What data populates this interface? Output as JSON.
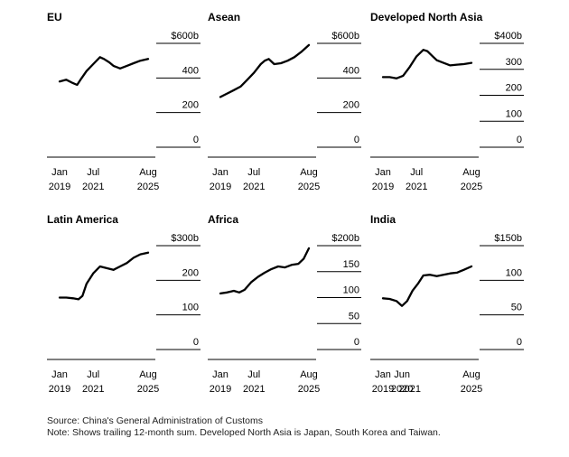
{
  "notes": {
    "source": "Source: China's General Administration of Customs",
    "note": "Note: Shows trailing 12-month sum. Developed North Asia is Japan, South Korea and Taiwan."
  },
  "chart_data": [
    {
      "type": "line",
      "title": "EU",
      "unit": "b",
      "ylim": [
        0,
        600
      ],
      "yticks": [
        "0",
        "200",
        "400",
        "$600b"
      ],
      "ytick_values": [
        0,
        200,
        400,
        600
      ],
      "xlim": [
        2019.0,
        2025.58
      ],
      "xticks": [
        {
          "value": 2019.0,
          "line1": "Jan",
          "line2": "2019"
        },
        {
          "value": 2021.5,
          "line1": "Jul",
          "line2": "2021"
        },
        {
          "value": 2025.58,
          "line1": "Aug",
          "line2": "2025"
        }
      ],
      "series": [
        {
          "points": [
            [
              2019.0,
              380
            ],
            [
              2019.5,
              390
            ],
            [
              2020.0,
              370
            ],
            [
              2020.3,
              360
            ],
            [
              2020.6,
              395
            ],
            [
              2021.0,
              440
            ],
            [
              2021.5,
              480
            ],
            [
              2022.0,
              520
            ],
            [
              2022.3,
              510
            ],
            [
              2022.7,
              490
            ],
            [
              2023.0,
              470
            ],
            [
              2023.5,
              455
            ],
            [
              2024.0,
              470
            ],
            [
              2024.5,
              485
            ],
            [
              2025.0,
              500
            ],
            [
              2025.58,
              510
            ]
          ]
        }
      ]
    },
    {
      "type": "line",
      "title": "Asean",
      "unit": "b",
      "ylim": [
        0,
        600
      ],
      "yticks": [
        "0",
        "200",
        "400",
        "$600b"
      ],
      "ytick_values": [
        0,
        200,
        400,
        600
      ],
      "xlim": [
        2019.0,
        2025.58
      ],
      "xticks": [
        {
          "value": 2019.0,
          "line1": "Jan",
          "line2": "2019"
        },
        {
          "value": 2021.5,
          "line1": "Jul",
          "line2": "2021"
        },
        {
          "value": 2025.58,
          "line1": "Aug",
          "line2": "2025"
        }
      ],
      "series": [
        {
          "points": [
            [
              2019.0,
              290
            ],
            [
              2019.5,
              310
            ],
            [
              2020.0,
              330
            ],
            [
              2020.5,
              350
            ],
            [
              2021.0,
              390
            ],
            [
              2021.5,
              430
            ],
            [
              2022.0,
              480
            ],
            [
              2022.3,
              500
            ],
            [
              2022.6,
              510
            ],
            [
              2023.0,
              480
            ],
            [
              2023.5,
              485
            ],
            [
              2024.0,
              500
            ],
            [
              2024.5,
              520
            ],
            [
              2025.0,
              550
            ],
            [
              2025.58,
              590
            ]
          ]
        }
      ]
    },
    {
      "type": "line",
      "title": "Developed North Asia",
      "unit": "b",
      "ylim": [
        0,
        400
      ],
      "yticks": [
        "0",
        "100",
        "200",
        "300",
        "$400b"
      ],
      "ytick_values": [
        0,
        100,
        200,
        300,
        400
      ],
      "xlim": [
        2019.0,
        2025.58
      ],
      "xticks": [
        {
          "value": 2019.0,
          "line1": "Jan",
          "line2": "2019"
        },
        {
          "value": 2021.5,
          "line1": "Jul",
          "line2": "2021"
        },
        {
          "value": 2025.58,
          "line1": "Aug",
          "line2": "2025"
        }
      ],
      "series": [
        {
          "points": [
            [
              2019.0,
              270
            ],
            [
              2019.5,
              270
            ],
            [
              2020.0,
              265
            ],
            [
              2020.5,
              275
            ],
            [
              2021.0,
              310
            ],
            [
              2021.5,
              350
            ],
            [
              2022.0,
              375
            ],
            [
              2022.3,
              370
            ],
            [
              2022.7,
              350
            ],
            [
              2023.0,
              335
            ],
            [
              2023.5,
              325
            ],
            [
              2024.0,
              315
            ],
            [
              2024.5,
              318
            ],
            [
              2025.0,
              320
            ],
            [
              2025.58,
              325
            ]
          ]
        }
      ]
    },
    {
      "type": "line",
      "title": "Latin America",
      "unit": "b",
      "ylim": [
        0,
        300
      ],
      "yticks": [
        "0",
        "100",
        "200",
        "$300b"
      ],
      "ytick_values": [
        0,
        100,
        200,
        300
      ],
      "xlim": [
        2019.0,
        2025.58
      ],
      "xticks": [
        {
          "value": 2019.0,
          "line1": "Jan",
          "line2": "2019"
        },
        {
          "value": 2021.5,
          "line1": "Jul",
          "line2": "2021"
        },
        {
          "value": 2025.58,
          "line1": "Aug",
          "line2": "2025"
        }
      ],
      "series": [
        {
          "points": [
            [
              2019.0,
              150
            ],
            [
              2019.5,
              150
            ],
            [
              2020.0,
              148
            ],
            [
              2020.4,
              145
            ],
            [
              2020.7,
              155
            ],
            [
              2021.0,
              190
            ],
            [
              2021.5,
              220
            ],
            [
              2022.0,
              240
            ],
            [
              2022.5,
              235
            ],
            [
              2023.0,
              230
            ],
            [
              2023.5,
              240
            ],
            [
              2024.0,
              250
            ],
            [
              2024.5,
              265
            ],
            [
              2025.0,
              275
            ],
            [
              2025.58,
              280
            ]
          ]
        }
      ]
    },
    {
      "type": "line",
      "title": "Africa",
      "unit": "b",
      "ylim": [
        0,
        200
      ],
      "yticks": [
        "0",
        "50",
        "100",
        "150",
        "$200b"
      ],
      "ytick_values": [
        0,
        50,
        100,
        150,
        200
      ],
      "xlim": [
        2019.0,
        2025.58
      ],
      "xticks": [
        {
          "value": 2019.0,
          "line1": "Jan",
          "line2": "2019"
        },
        {
          "value": 2021.5,
          "line1": "Jul",
          "line2": "2021"
        },
        {
          "value": 2025.58,
          "line1": "Aug",
          "line2": "2025"
        }
      ],
      "series": [
        {
          "points": [
            [
              2019.0,
              108
            ],
            [
              2019.5,
              110
            ],
            [
              2020.0,
              113
            ],
            [
              2020.4,
              110
            ],
            [
              2020.8,
              115
            ],
            [
              2021.3,
              130
            ],
            [
              2021.8,
              140
            ],
            [
              2022.3,
              148
            ],
            [
              2022.8,
              155
            ],
            [
              2023.3,
              160
            ],
            [
              2023.8,
              158
            ],
            [
              2024.3,
              163
            ],
            [
              2024.8,
              165
            ],
            [
              2025.2,
              175
            ],
            [
              2025.58,
              195
            ]
          ]
        }
      ]
    },
    {
      "type": "line",
      "title": "India",
      "unit": "b",
      "ylim": [
        0,
        150
      ],
      "yticks": [
        "0",
        "50",
        "100",
        "$150b"
      ],
      "ytick_values": [
        0,
        50,
        100,
        150
      ],
      "xlim": [
        2019.0,
        2025.58
      ],
      "xticks": [
        {
          "value": 2019.0,
          "line1": "Jan",
          "line2": "2019"
        },
        {
          "value": 2020.42,
          "line1": "Jun",
          "line2": "2020"
        },
        {
          "value": 2021.0,
          "line1": "",
          "line2": "2021"
        },
        {
          "value": 2025.58,
          "line1": "Aug",
          "line2": "2025"
        }
      ],
      "series": [
        {
          "points": [
            [
              2019.0,
              74
            ],
            [
              2019.5,
              73
            ],
            [
              2020.0,
              70
            ],
            [
              2020.42,
              63
            ],
            [
              2020.8,
              70
            ],
            [
              2021.2,
              85
            ],
            [
              2021.6,
              95
            ],
            [
              2022.0,
              107
            ],
            [
              2022.5,
              108
            ],
            [
              2023.0,
              106
            ],
            [
              2023.5,
              108
            ],
            [
              2024.0,
              110
            ],
            [
              2024.5,
              111
            ],
            [
              2025.0,
              115
            ],
            [
              2025.58,
              120
            ]
          ]
        }
      ]
    }
  ]
}
